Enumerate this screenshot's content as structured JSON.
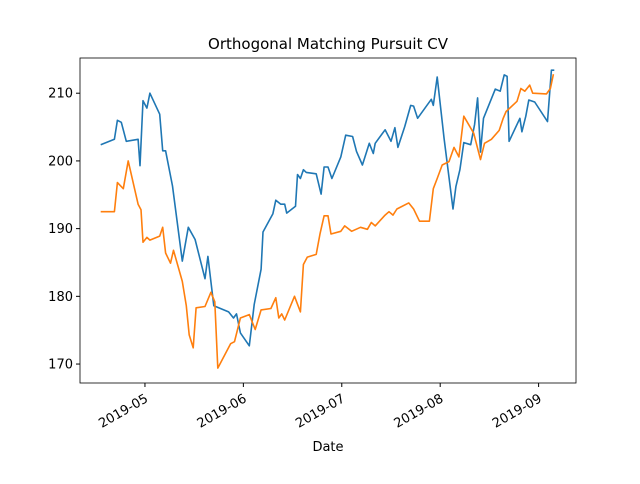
{
  "chart_data": {
    "type": "line",
    "title": "Orthogonal Matching Pursuit CV",
    "x_label": "Date",
    "xlim": [
      4.34,
      9.38
    ],
    "xticks": [
      {
        "value": 5,
        "label": "2019-05"
      },
      {
        "value": 6,
        "label": "2019-06"
      },
      {
        "value": 7,
        "label": "2019-07"
      },
      {
        "value": 8,
        "label": "2019-08"
      },
      {
        "value": 9,
        "label": "2019-09"
      }
    ],
    "ylim": [
      167.2,
      215.2
    ],
    "yticks": [
      170,
      180,
      190,
      200,
      210
    ],
    "grid": false,
    "series": [
      {
        "color": "#1f77b4",
        "x": [
          4.55,
          4.69,
          4.72,
          4.76,
          4.81,
          4.93,
          4.95,
          4.98,
          5.02,
          5.05,
          5.15,
          5.18,
          5.21,
          5.28,
          5.38,
          5.44,
          5.51,
          5.61,
          5.64,
          5.7,
          5.85,
          5.9,
          5.93,
          5.97,
          6.06,
          6.11,
          6.18,
          6.2,
          6.3,
          6.33,
          6.38,
          6.42,
          6.44,
          6.53,
          6.55,
          6.58,
          6.61,
          6.64,
          6.74,
          6.79,
          6.82,
          6.86,
          6.9,
          6.99,
          7.04,
          7.11,
          7.15,
          7.21,
          7.28,
          7.32,
          7.34,
          7.44,
          7.5,
          7.54,
          7.57,
          7.64,
          7.7,
          7.73,
          7.77,
          7.91,
          7.93,
          7.97,
          8.04,
          8.13,
          8.16,
          8.2,
          8.24,
          8.31,
          8.35,
          8.38,
          8.41,
          8.44,
          8.56,
          8.61,
          8.65,
          8.68,
          8.7,
          8.81,
          8.83,
          8.87,
          8.9,
          8.96,
          9.09,
          9.13,
          9.16
        ],
        "values": [
          202.4,
          203.2,
          206,
          205.7,
          202.9,
          203.2,
          199.3,
          208.9,
          207.8,
          210,
          206.9,
          201.5,
          201.5,
          196.3,
          185.2,
          190.2,
          188.4,
          182.6,
          185.9,
          178.6,
          177.7,
          176.8,
          177.4,
          174.6,
          172.7,
          178.8,
          184,
          189.5,
          192.2,
          194.2,
          193.6,
          193.6,
          192.3,
          193.3,
          198,
          197.4,
          198.7,
          198.3,
          198.1,
          195.1,
          199.1,
          199.1,
          197.4,
          200.6,
          203.8,
          203.6,
          201.4,
          199.4,
          202.6,
          201.1,
          202.6,
          204.6,
          202.9,
          204.9,
          202,
          205.1,
          208.2,
          208.1,
          206.3,
          209.1,
          208.2,
          212.4,
          203.3,
          192.9,
          196.2,
          198.7,
          202.7,
          202.4,
          205.4,
          209.3,
          201.3,
          206.3,
          210.6,
          210.3,
          212.7,
          212.5,
          202.9,
          206.3,
          204.3,
          206.6,
          209,
          208.7,
          205.8,
          213.4,
          213.4
        ]
      },
      {
        "color": "#ff7f0e",
        "x": [
          4.55,
          4.69,
          4.72,
          4.78,
          4.83,
          4.93,
          4.96,
          4.98,
          5.02,
          5.05,
          5.15,
          5.18,
          5.21,
          5.26,
          5.29,
          5.38,
          5.42,
          5.45,
          5.49,
          5.52,
          5.61,
          5.67,
          5.71,
          5.74,
          5.87,
          5.91,
          5.97,
          6.06,
          6.12,
          6.18,
          6.28,
          6.33,
          6.36,
          6.39,
          6.42,
          6.52,
          6.58,
          6.61,
          6.65,
          6.74,
          6.78,
          6.82,
          6.86,
          6.89,
          6.99,
          7.03,
          7.1,
          7.19,
          7.26,
          7.3,
          7.34,
          7.44,
          7.48,
          7.52,
          7.56,
          7.68,
          7.73,
          7.79,
          7.89,
          7.93,
          7.97,
          8.02,
          8.09,
          8.14,
          8.19,
          8.24,
          8.34,
          8.41,
          8.45,
          8.52,
          8.6,
          8.64,
          8.67,
          8.78,
          8.82,
          8.86,
          8.91,
          8.94,
          9.08,
          9.12,
          9.15
        ],
        "values": [
          192.5,
          192.5,
          196.8,
          195.9,
          200,
          193.6,
          192.8,
          188,
          188.7,
          188.3,
          188.9,
          190.2,
          186.4,
          184.9,
          186.8,
          182.2,
          178.6,
          174.3,
          172.4,
          178.3,
          178.5,
          180.6,
          179.2,
          169.4,
          173,
          173.3,
          176.8,
          177.3,
          175.1,
          178,
          178.2,
          179.8,
          176.8,
          177.4,
          176.5,
          180,
          177.7,
          184.7,
          185.8,
          186.2,
          189.3,
          191.9,
          191.9,
          189.2,
          189.6,
          190.4,
          189.6,
          190.2,
          189.9,
          190.9,
          190.4,
          192,
          192.5,
          192,
          192.9,
          193.8,
          192.9,
          191.1,
          191.1,
          195.9,
          197.4,
          199.4,
          199.9,
          202,
          200.6,
          206.6,
          204.1,
          200.2,
          202.6,
          203.2,
          204.5,
          206.3,
          207.3,
          208.8,
          210.7,
          210.3,
          211.2,
          210,
          209.9,
          210.7,
          212.8
        ]
      }
    ]
  }
}
